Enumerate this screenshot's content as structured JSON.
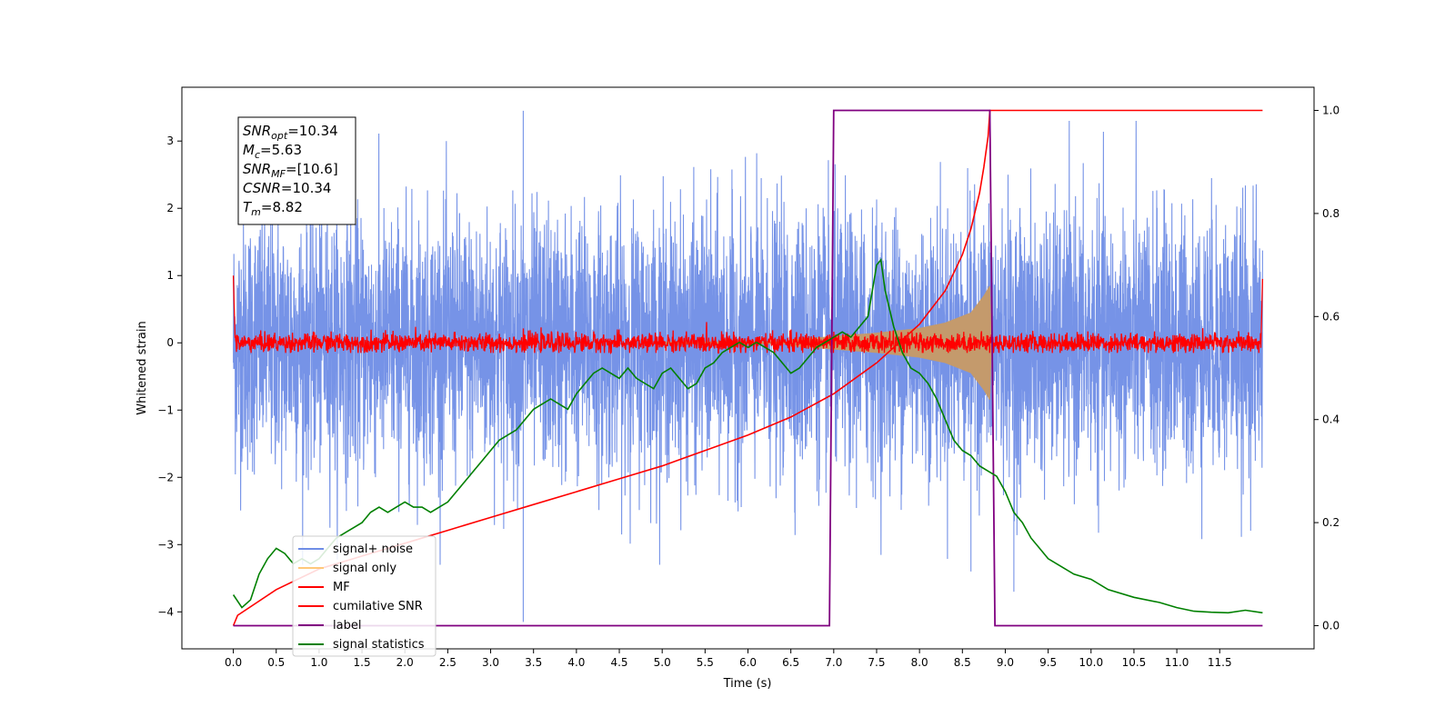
{
  "chart_data": {
    "type": "line",
    "title": "",
    "xlabel": "Time (s)",
    "ylabel": "Whitened strain",
    "xlim": [
      -0.6,
      12.6
    ],
    "ylim": [
      -4.55,
      3.8
    ],
    "y2lim": [
      -0.045,
      1.045
    ],
    "xticks": [
      "0.0",
      "0.5",
      "1.0",
      "1.5",
      "2.0",
      "2.5",
      "3.0",
      "3.5",
      "4.0",
      "4.5",
      "5.0",
      "5.5",
      "6.0",
      "6.5",
      "7.0",
      "7.5",
      "8.0",
      "8.5",
      "9.0",
      "9.5",
      "10.0",
      "10.5",
      "11.0",
      "11.5"
    ],
    "yticks": [
      "3",
      "2",
      "1",
      "0",
      "−1",
      "−2",
      "−3",
      "−4"
    ],
    "y2ticks": [
      "1.0",
      "0.8",
      "0.6",
      "0.4",
      "0.2",
      "0.0"
    ],
    "grid": false,
    "legend_position": "lower-left",
    "annotation": {
      "lines": [
        {
          "sym": "SNR",
          "sub": "opt",
          "val": "=10.34"
        },
        {
          "sym": "M",
          "sub": "c",
          "val": "=5.63"
        },
        {
          "sym": "SNR",
          "sub": "MF",
          "val": "=[10.6]"
        },
        {
          "sym": "CSNR",
          "sub": "",
          "val": "=10.34"
        },
        {
          "sym": "T",
          "sub": "m",
          "val": "=8.82"
        }
      ]
    },
    "series": [
      {
        "name": "signal+ noise",
        "axis": "left",
        "color": "#6f8de6",
        "description_range": [
          0,
          12
        ],
        "notable_spikes": [
          {
            "x": 3.38,
            "y": -4.15
          },
          {
            "x": 3.38,
            "y": 3.45
          },
          {
            "x": 8.6,
            "y": -3.4
          },
          {
            "x": 9.1,
            "y": -3.7
          }
        ]
      },
      {
        "name": "signal only",
        "axis": "left",
        "color": "#ffc87a",
        "envelope": [
          [
            6.5,
            0.05
          ],
          [
            7.0,
            0.1
          ],
          [
            7.5,
            0.15
          ],
          [
            8.0,
            0.22
          ],
          [
            8.3,
            0.3
          ],
          [
            8.6,
            0.45
          ],
          [
            8.75,
            0.7
          ],
          [
            8.82,
            0.85
          ],
          [
            8.84,
            0.0
          ]
        ]
      },
      {
        "name": "MF",
        "axis": "left",
        "color": "#ff0000",
        "center": 0.0,
        "amplitude": 0.12,
        "edge_values": [
          {
            "x": 0.0,
            "y": 1.0
          },
          {
            "x": 12.0,
            "y": 0.95
          }
        ]
      },
      {
        "name": "cumilative SNR",
        "axis": "right",
        "color": "#ff0000",
        "x": [
          0.0,
          0.05,
          0.5,
          1.0,
          1.5,
          2.0,
          2.5,
          3.0,
          3.5,
          4.0,
          4.5,
          5.0,
          5.5,
          6.0,
          6.5,
          7.0,
          7.5,
          8.0,
          8.3,
          8.5,
          8.6,
          8.7,
          8.75,
          8.8,
          8.82,
          9.0,
          10.0,
          11.0,
          12.0
        ],
        "y": [
          0.0,
          0.02,
          0.07,
          0.11,
          0.135,
          0.16,
          0.185,
          0.21,
          0.235,
          0.26,
          0.285,
          0.31,
          0.34,
          0.37,
          0.405,
          0.45,
          0.51,
          0.585,
          0.65,
          0.72,
          0.77,
          0.84,
          0.89,
          0.95,
          1.0,
          1.0,
          1.0,
          1.0,
          1.0
        ]
      },
      {
        "name": "label",
        "axis": "right",
        "color": "#800080",
        "x": [
          0.0,
          6.95,
          7.0,
          8.82,
          8.88,
          12.0
        ],
        "y": [
          0.0,
          0.0,
          1.0,
          1.0,
          0.0,
          0.0
        ]
      },
      {
        "name": "signal statistics",
        "axis": "right",
        "color": "#008000",
        "x": [
          0.0,
          0.1,
          0.2,
          0.3,
          0.4,
          0.5,
          0.6,
          0.7,
          0.8,
          0.9,
          1.0,
          1.1,
          1.2,
          1.3,
          1.4,
          1.5,
          1.6,
          1.7,
          1.8,
          1.9,
          2.0,
          2.1,
          2.2,
          2.3,
          2.4,
          2.5,
          2.6,
          2.7,
          2.8,
          2.9,
          3.0,
          3.1,
          3.2,
          3.3,
          3.4,
          3.5,
          3.6,
          3.7,
          3.8,
          3.9,
          4.0,
          4.1,
          4.2,
          4.3,
          4.4,
          4.5,
          4.6,
          4.7,
          4.8,
          4.9,
          5.0,
          5.1,
          5.2,
          5.3,
          5.4,
          5.5,
          5.6,
          5.7,
          5.8,
          5.9,
          6.0,
          6.1,
          6.2,
          6.3,
          6.4,
          6.5,
          6.6,
          6.7,
          6.8,
          6.9,
          7.0,
          7.1,
          7.2,
          7.3,
          7.4,
          7.5,
          7.55,
          7.6,
          7.7,
          7.8,
          7.9,
          8.0,
          8.1,
          8.2,
          8.3,
          8.4,
          8.5,
          8.6,
          8.7,
          8.8,
          8.9,
          9.0,
          9.1,
          9.2,
          9.3,
          9.4,
          9.5,
          9.6,
          9.8,
          10.0,
          10.2,
          10.5,
          10.8,
          11.0,
          11.2,
          11.4,
          11.6,
          11.8,
          12.0
        ],
        "y": [
          0.06,
          0.035,
          0.05,
          0.1,
          0.13,
          0.15,
          0.14,
          0.12,
          0.13,
          0.12,
          0.13,
          0.15,
          0.17,
          0.18,
          0.19,
          0.2,
          0.22,
          0.23,
          0.22,
          0.23,
          0.24,
          0.23,
          0.23,
          0.22,
          0.23,
          0.24,
          0.26,
          0.28,
          0.3,
          0.32,
          0.34,
          0.36,
          0.37,
          0.38,
          0.4,
          0.42,
          0.43,
          0.44,
          0.43,
          0.42,
          0.45,
          0.47,
          0.49,
          0.5,
          0.49,
          0.48,
          0.5,
          0.48,
          0.47,
          0.46,
          0.49,
          0.5,
          0.48,
          0.46,
          0.47,
          0.5,
          0.51,
          0.53,
          0.54,
          0.55,
          0.54,
          0.55,
          0.54,
          0.53,
          0.51,
          0.49,
          0.5,
          0.52,
          0.54,
          0.55,
          0.56,
          0.57,
          0.56,
          0.58,
          0.6,
          0.7,
          0.71,
          0.65,
          0.58,
          0.53,
          0.5,
          0.49,
          0.47,
          0.44,
          0.4,
          0.36,
          0.34,
          0.33,
          0.31,
          0.3,
          0.29,
          0.26,
          0.22,
          0.2,
          0.17,
          0.15,
          0.13,
          0.12,
          0.1,
          0.09,
          0.07,
          0.055,
          0.045,
          0.035,
          0.028,
          0.026,
          0.025,
          0.03,
          0.025
        ]
      }
    ]
  }
}
